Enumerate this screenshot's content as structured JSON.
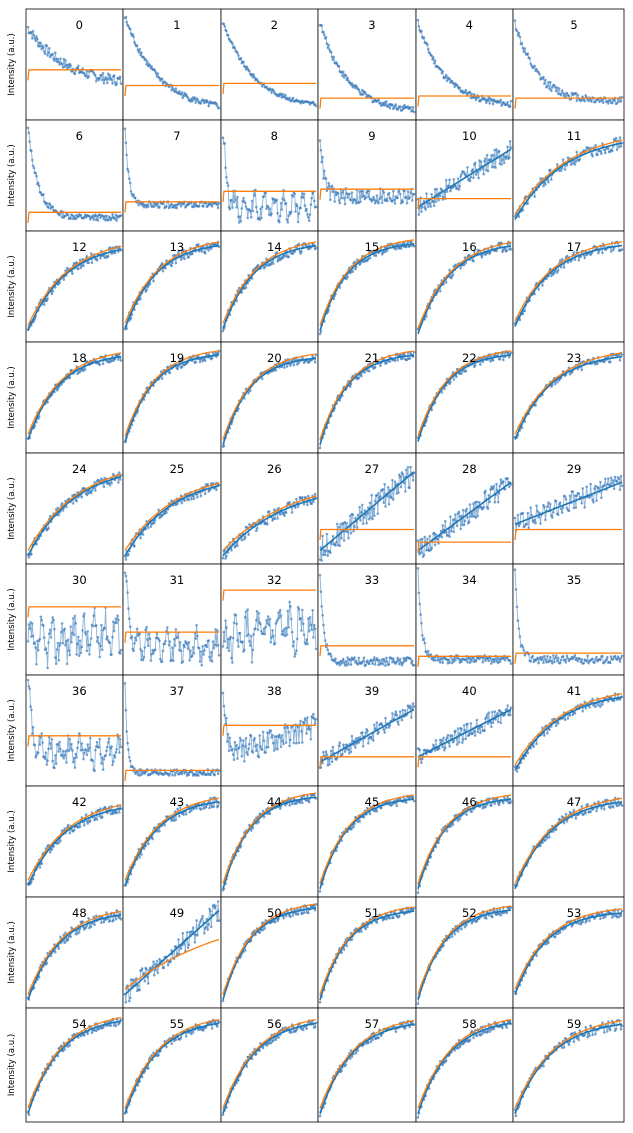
{
  "chart_data": {
    "type": "scatter",
    "rows": 10,
    "cols": 6,
    "ylabel": "Intensity (a.u.)",
    "series": [
      {
        "name": "",
        "color": "#1f77b4",
        "marker": "points"
      },
      {
        "name": "",
        "color": "#ff7f0e",
        "marker": "line"
      }
    ],
    "panels": [
      {
        "label": "0",
        "shape": "decay",
        "k": 2.5,
        "start": 0.85,
        "end": 0.3,
        "noise": 0.05,
        "fit": "step",
        "fit_level": 0.45
      },
      {
        "label": "1",
        "shape": "decay",
        "k": 2.8,
        "start": 0.95,
        "end": 0.05,
        "noise": 0.03,
        "fit": "step",
        "fit_level": 0.3
      },
      {
        "label": "2",
        "shape": "decay",
        "k": 3.0,
        "start": 0.9,
        "end": 0.08,
        "noise": 0.02,
        "fit": "step",
        "fit_level": 0.32
      },
      {
        "label": "3",
        "shape": "decay",
        "k": 3.5,
        "start": 0.9,
        "end": 0.05,
        "noise": 0.03,
        "fit": "step",
        "fit_level": 0.18
      },
      {
        "label": "4",
        "shape": "decay",
        "k": 3.5,
        "start": 0.9,
        "end": 0.1,
        "noise": 0.03,
        "fit": "step",
        "fit_level": 0.2
      },
      {
        "label": "5",
        "shape": "decay",
        "k": 5.0,
        "start": 0.9,
        "end": 0.15,
        "noise": 0.04,
        "fit": "step",
        "fit_level": 0.18
      },
      {
        "label": "6",
        "shape": "decay",
        "k": 9.0,
        "start": 0.95,
        "end": 0.1,
        "noise": 0.03,
        "fit": "step",
        "fit_level": 0.15
      },
      {
        "label": "7",
        "shape": "spike",
        "k": 25,
        "start": 0.95,
        "end": 0.22,
        "noise": 0.03,
        "fit": "step",
        "fit_level": 0.25
      },
      {
        "label": "8",
        "shape": "spike_osc",
        "k": 25,
        "start": 0.9,
        "end": 0.2,
        "noise": 0.08,
        "fit": "step",
        "fit_level": 0.35
      },
      {
        "label": "9",
        "shape": "spike",
        "k": 25,
        "start": 0.9,
        "end": 0.3,
        "noise": 0.08,
        "fit": "step",
        "fit_level": 0.37
      },
      {
        "label": "10",
        "shape": "linear",
        "k": 1,
        "start": 0.2,
        "end": 0.75,
        "noise": 0.09,
        "fit": "step",
        "fit_level": 0.28
      },
      {
        "label": "11",
        "shape": "rise",
        "k": 2.2,
        "start": 0.08,
        "end": 0.9,
        "noise": 0.06,
        "fit": "curve"
      },
      {
        "label": "12",
        "shape": "rise",
        "k": 2.5,
        "start": 0.08,
        "end": 0.92,
        "noise": 0.05,
        "fit": "curve"
      },
      {
        "label": "13",
        "shape": "rise",
        "k": 3.0,
        "start": 0.1,
        "end": 0.93,
        "noise": 0.05,
        "fit": "curve"
      },
      {
        "label": "14",
        "shape": "rise",
        "k": 3.0,
        "start": 0.1,
        "end": 0.93,
        "noise": 0.05,
        "fit": "curve"
      },
      {
        "label": "15",
        "shape": "rise",
        "k": 3.5,
        "start": 0.08,
        "end": 0.93,
        "noise": 0.04,
        "fit": "curve"
      },
      {
        "label": "16",
        "shape": "rise",
        "k": 3.0,
        "start": 0.05,
        "end": 0.93,
        "noise": 0.05,
        "fit": "curve"
      },
      {
        "label": "17",
        "shape": "rise",
        "k": 3.0,
        "start": 0.12,
        "end": 0.93,
        "noise": 0.05,
        "fit": "curve"
      },
      {
        "label": "18",
        "shape": "rise",
        "k": 3.0,
        "start": 0.1,
        "end": 0.93,
        "noise": 0.04,
        "fit": "curve"
      },
      {
        "label": "19",
        "shape": "rise",
        "k": 3.5,
        "start": 0.08,
        "end": 0.93,
        "noise": 0.04,
        "fit": "curve"
      },
      {
        "label": "20",
        "shape": "rise",
        "k": 3.5,
        "start": 0.05,
        "end": 0.9,
        "noise": 0.04,
        "fit": "curve"
      },
      {
        "label": "21",
        "shape": "rise",
        "k": 3.5,
        "start": 0.05,
        "end": 0.93,
        "noise": 0.04,
        "fit": "curve"
      },
      {
        "label": "22",
        "shape": "rise",
        "k": 3.5,
        "start": 0.08,
        "end": 0.93,
        "noise": 0.04,
        "fit": "curve"
      },
      {
        "label": "23",
        "shape": "rise",
        "k": 3.0,
        "start": 0.1,
        "end": 0.93,
        "noise": 0.04,
        "fit": "curve"
      },
      {
        "label": "24",
        "shape": "rise",
        "k": 2.0,
        "start": 0.05,
        "end": 0.92,
        "noise": 0.05,
        "fit": "curve"
      },
      {
        "label": "25",
        "shape": "rise",
        "k": 2.0,
        "start": 0.05,
        "end": 0.82,
        "noise": 0.05,
        "fit": "curve"
      },
      {
        "label": "26",
        "shape": "rise",
        "k": 1.5,
        "start": 0.05,
        "end": 0.75,
        "noise": 0.06,
        "fit": "curve"
      },
      {
        "label": "27",
        "shape": "linear",
        "k": 1,
        "start": 0.1,
        "end": 0.85,
        "noise": 0.12,
        "fit": "step",
        "fit_level": 0.3
      },
      {
        "label": "28",
        "shape": "linear",
        "k": 1,
        "start": 0.1,
        "end": 0.75,
        "noise": 0.1,
        "fit": "step",
        "fit_level": 0.18
      },
      {
        "label": "29",
        "shape": "linear",
        "k": 1,
        "start": 0.35,
        "end": 0.75,
        "noise": 0.1,
        "fit": "step",
        "fit_level": 0.3
      },
      {
        "label": "30",
        "shape": "osc",
        "k": 1,
        "start": 0.25,
        "end": 0.4,
        "noise": 0.15,
        "fit": "step",
        "fit_level": 0.62
      },
      {
        "label": "31",
        "shape": "spike_osc",
        "k": 25,
        "start": 0.95,
        "end": 0.25,
        "noise": 0.1,
        "fit": "step",
        "fit_level": 0.38
      },
      {
        "label": "32",
        "shape": "osc",
        "k": 1,
        "start": 0.3,
        "end": 0.45,
        "noise": 0.15,
        "fit": "step",
        "fit_level": 0.78
      },
      {
        "label": "33",
        "shape": "spike",
        "k": 25,
        "start": 0.95,
        "end": 0.1,
        "noise": 0.04,
        "fit": "step",
        "fit_level": 0.25
      },
      {
        "label": "34",
        "shape": "spike",
        "k": 25,
        "start": 0.95,
        "end": 0.12,
        "noise": 0.04,
        "fit": "step",
        "fit_level": 0.15
      },
      {
        "label": "35",
        "shape": "spike",
        "k": 30,
        "start": 0.95,
        "end": 0.12,
        "noise": 0.04,
        "fit": "step",
        "fit_level": 0.18
      },
      {
        "label": "36",
        "shape": "spike_osc",
        "k": 25,
        "start": 0.95,
        "end": 0.3,
        "noise": 0.1,
        "fit": "step",
        "fit_level": 0.45
      },
      {
        "label": "37",
        "shape": "spike",
        "k": 40,
        "start": 0.95,
        "end": 0.1,
        "noise": 0.03,
        "fit": "step",
        "fit_level": 0.12
      },
      {
        "label": "38",
        "shape": "spike_rise",
        "k": 25,
        "start": 0.9,
        "end": 0.6,
        "noise": 0.12,
        "fit": "step",
        "fit_level": 0.55
      },
      {
        "label": "39",
        "shape": "linear",
        "k": 1,
        "start": 0.2,
        "end": 0.7,
        "noise": 0.08,
        "fit": "step",
        "fit_level": 0.25
      },
      {
        "label": "40",
        "shape": "linear",
        "k": 1,
        "start": 0.25,
        "end": 0.7,
        "noise": 0.08,
        "fit": "step",
        "fit_level": 0.25
      },
      {
        "label": "41",
        "shape": "rise",
        "k": 2.5,
        "start": 0.12,
        "end": 0.88,
        "noise": 0.05,
        "fit": "curve"
      },
      {
        "label": "42",
        "shape": "rise",
        "k": 2.5,
        "start": 0.08,
        "end": 0.88,
        "noise": 0.05,
        "fit": "curve"
      },
      {
        "label": "43",
        "shape": "rise",
        "k": 3.0,
        "start": 0.08,
        "end": 0.92,
        "noise": 0.05,
        "fit": "curve"
      },
      {
        "label": "44",
        "shape": "rise",
        "k": 3.5,
        "start": 0.05,
        "end": 0.95,
        "noise": 0.04,
        "fit": "curve"
      },
      {
        "label": "45",
        "shape": "rise",
        "k": 3.5,
        "start": 0.05,
        "end": 0.93,
        "noise": 0.04,
        "fit": "curve"
      },
      {
        "label": "46",
        "shape": "rise",
        "k": 3.5,
        "start": 0.05,
        "end": 0.93,
        "noise": 0.04,
        "fit": "curve"
      },
      {
        "label": "47",
        "shape": "rise",
        "k": 3.0,
        "start": 0.05,
        "end": 0.92,
        "noise": 0.05,
        "fit": "curve"
      },
      {
        "label": "48",
        "shape": "rise",
        "k": 3.0,
        "start": 0.05,
        "end": 0.9,
        "noise": 0.05,
        "fit": "curve"
      },
      {
        "label": "49",
        "shape": "linear",
        "k": 1,
        "start": 0.1,
        "end": 0.9,
        "noise": 0.1,
        "fit": "curve"
      },
      {
        "label": "50",
        "shape": "rise",
        "k": 3.5,
        "start": 0.05,
        "end": 0.95,
        "noise": 0.04,
        "fit": "curve"
      },
      {
        "label": "51",
        "shape": "rise",
        "k": 3.5,
        "start": 0.05,
        "end": 0.92,
        "noise": 0.04,
        "fit": "curve"
      },
      {
        "label": "52",
        "shape": "rise",
        "k": 3.5,
        "start": 0.05,
        "end": 0.93,
        "noise": 0.04,
        "fit": "curve"
      },
      {
        "label": "53",
        "shape": "rise",
        "k": 3.5,
        "start": 0.1,
        "end": 0.9,
        "noise": 0.04,
        "fit": "curve"
      },
      {
        "label": "54",
        "shape": "rise",
        "k": 3.0,
        "start": 0.05,
        "end": 0.95,
        "noise": 0.04,
        "fit": "curve"
      },
      {
        "label": "55",
        "shape": "rise",
        "k": 3.0,
        "start": 0.05,
        "end": 0.93,
        "noise": 0.04,
        "fit": "curve"
      },
      {
        "label": "56",
        "shape": "rise",
        "k": 3.0,
        "start": 0.05,
        "end": 0.93,
        "noise": 0.04,
        "fit": "curve"
      },
      {
        "label": "57",
        "shape": "rise",
        "k": 3.0,
        "start": 0.05,
        "end": 0.92,
        "noise": 0.04,
        "fit": "curve"
      },
      {
        "label": "58",
        "shape": "rise",
        "k": 3.0,
        "start": 0.05,
        "end": 0.93,
        "noise": 0.04,
        "fit": "curve"
      },
      {
        "label": "59",
        "shape": "rise",
        "k": 3.0,
        "start": 0.05,
        "end": 0.92,
        "noise": 0.05,
        "fit": "curve"
      }
    ]
  }
}
